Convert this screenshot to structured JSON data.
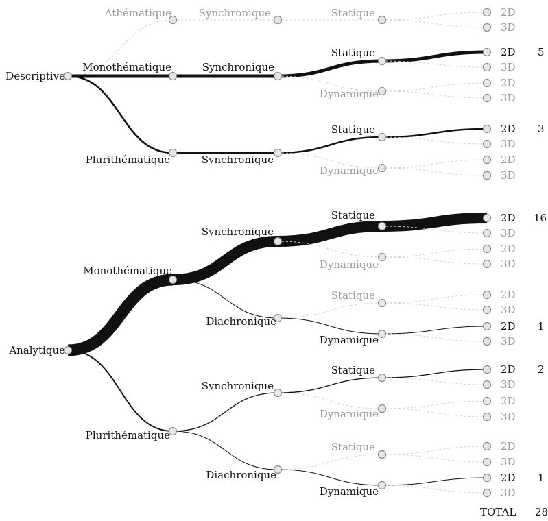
{
  "colors": {
    "active_edge": "#111111",
    "inactive_edge": "#cfcfcf",
    "node_fill": "#e6e6e6",
    "node_stroke": "#8a8a8a",
    "active_text": "#111111",
    "inactive_text": "#9a9a9a"
  },
  "nodes": [
    {
      "id": "descriptive",
      "label": "Descriptive",
      "active": true
    },
    {
      "id": "d-athematique",
      "label": "Athématique",
      "active": false
    },
    {
      "id": "d-monothematique",
      "label": "Monothématique",
      "active": true
    },
    {
      "id": "d-plurithematique",
      "label": "Plurithématique",
      "active": true
    },
    {
      "id": "d-a-synchronique",
      "label": "Synchronique",
      "active": false
    },
    {
      "id": "d-m-synchronique",
      "label": "Synchronique",
      "active": true
    },
    {
      "id": "d-p-synchronique",
      "label": "Synchronique",
      "active": true
    },
    {
      "id": "d-a-s-statique",
      "label": "Statique",
      "active": false
    },
    {
      "id": "d-m-s-statique",
      "label": "Statique",
      "active": true
    },
    {
      "id": "d-m-s-dynamique",
      "label": "Dynamique",
      "active": false
    },
    {
      "id": "d-p-s-statique",
      "label": "Statique",
      "active": true
    },
    {
      "id": "d-p-s-dynamique",
      "label": "Dynamique",
      "active": false
    },
    {
      "id": "analytique",
      "label": "Analytique",
      "active": true
    },
    {
      "id": "a-monothematique",
      "label": "Monothématique",
      "active": true
    },
    {
      "id": "a-plurithematique",
      "label": "Plurithématique",
      "active": true
    },
    {
      "id": "a-m-synchronique",
      "label": "Synchronique",
      "active": true
    },
    {
      "id": "a-m-diachronique",
      "label": "Diachronique",
      "active": true
    },
    {
      "id": "a-p-synchronique",
      "label": "Synchronique",
      "active": true
    },
    {
      "id": "a-p-diachronique",
      "label": "Diachronique",
      "active": true
    },
    {
      "id": "a-m-s-statique",
      "label": "Statique",
      "active": true
    },
    {
      "id": "a-m-s-dynamique",
      "label": "Dynamique",
      "active": false
    },
    {
      "id": "a-m-d-statique",
      "label": "Statique",
      "active": false
    },
    {
      "id": "a-m-d-dynamique",
      "label": "Dynamique",
      "active": true
    },
    {
      "id": "a-p-s-statique",
      "label": "Statique",
      "active": true
    },
    {
      "id": "a-p-s-dynamique",
      "label": "Dynamique",
      "active": false
    },
    {
      "id": "a-p-d-statique",
      "label": "Statique",
      "active": false
    },
    {
      "id": "a-p-d-dynamique",
      "label": "Dynamique",
      "active": true
    }
  ],
  "leaves": [
    {
      "id": "l1",
      "label": "2D",
      "parent": "d-a-s-statique",
      "count": null
    },
    {
      "id": "l2",
      "label": "3D",
      "parent": "d-a-s-statique",
      "count": null
    },
    {
      "id": "l3",
      "label": "2D",
      "parent": "d-m-s-statique",
      "count": 5
    },
    {
      "id": "l4",
      "label": "3D",
      "parent": "d-m-s-statique",
      "count": null
    },
    {
      "id": "l5",
      "label": "2D",
      "parent": "d-m-s-dynamique",
      "count": null
    },
    {
      "id": "l6",
      "label": "3D",
      "parent": "d-m-s-dynamique",
      "count": null
    },
    {
      "id": "l7",
      "label": "2D",
      "parent": "d-p-s-statique",
      "count": 3
    },
    {
      "id": "l8",
      "label": "3D",
      "parent": "d-p-s-statique",
      "count": null
    },
    {
      "id": "l9",
      "label": "2D",
      "parent": "d-p-s-dynamique",
      "count": null
    },
    {
      "id": "l10",
      "label": "3D",
      "parent": "d-p-s-dynamique",
      "count": null
    },
    {
      "id": "l11",
      "label": "2D",
      "parent": "a-m-s-statique",
      "count": 16
    },
    {
      "id": "l12",
      "label": "3D",
      "parent": "a-m-s-statique",
      "count": null
    },
    {
      "id": "l13",
      "label": "2D",
      "parent": "a-m-s-dynamique",
      "count": null
    },
    {
      "id": "l14",
      "label": "3D",
      "parent": "a-m-s-dynamique",
      "count": null
    },
    {
      "id": "l15",
      "label": "2D",
      "parent": "a-m-d-statique",
      "count": null
    },
    {
      "id": "l16",
      "label": "3D",
      "parent": "a-m-d-statique",
      "count": null
    },
    {
      "id": "l17",
      "label": "2D",
      "parent": "a-m-d-dynamique",
      "count": 1
    },
    {
      "id": "l18",
      "label": "3D",
      "parent": "a-m-d-dynamique",
      "count": null
    },
    {
      "id": "l19",
      "label": "2D",
      "parent": "a-p-s-statique",
      "count": 2
    },
    {
      "id": "l20",
      "label": "3D",
      "parent": "a-p-s-statique",
      "count": null
    },
    {
      "id": "l21",
      "label": "2D",
      "parent": "a-p-s-dynamique",
      "count": null
    },
    {
      "id": "l22",
      "label": "3D",
      "parent": "a-p-s-dynamique",
      "count": null
    },
    {
      "id": "l23",
      "label": "2D",
      "parent": "a-p-d-statique",
      "count": null
    },
    {
      "id": "l24",
      "label": "3D",
      "parent": "a-p-d-statique",
      "count": null
    },
    {
      "id": "l25",
      "label": "2D",
      "parent": "a-p-d-dynamique",
      "count": 1
    },
    {
      "id": "l26",
      "label": "3D",
      "parent": "a-p-d-dynamique",
      "count": null
    }
  ],
  "total": {
    "label": "TOTAL",
    "value": "28"
  }
}
